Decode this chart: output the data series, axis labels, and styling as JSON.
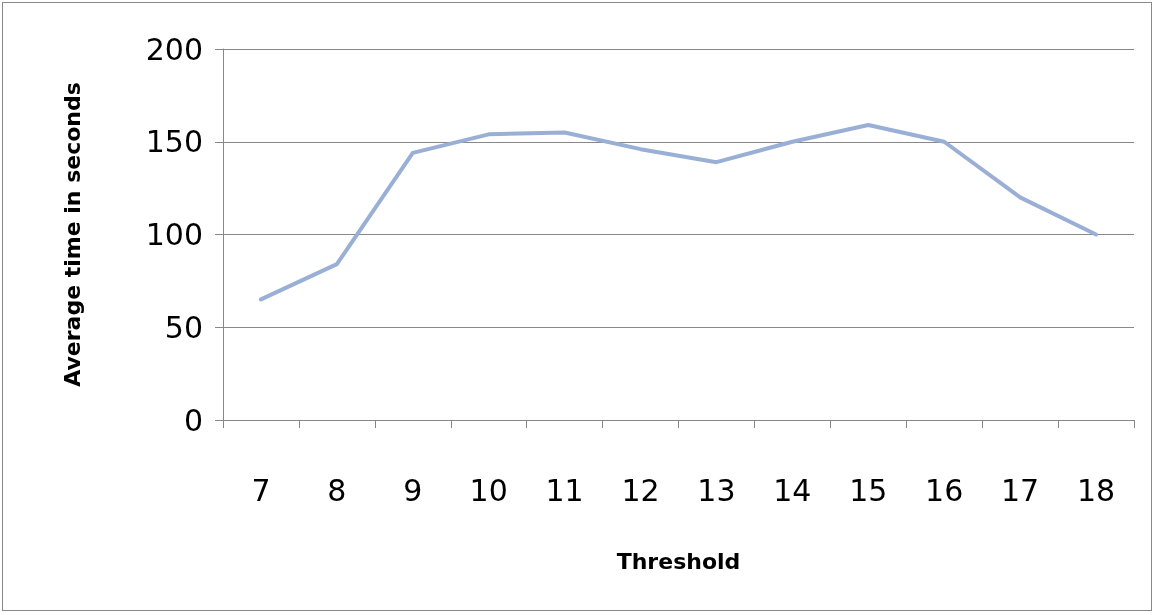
{
  "chart_data": {
    "type": "line",
    "xlabel": "Threshold",
    "ylabel": "Average time in seconds",
    "categories": [
      "7",
      "8",
      "9",
      "10",
      "11",
      "12",
      "13",
      "14",
      "15",
      "16",
      "17",
      "18"
    ],
    "series": [
      {
        "color": "#9aafd6",
        "values": [
          65,
          84,
          144,
          154,
          155,
          146,
          139,
          150,
          159,
          150,
          120,
          100
        ]
      }
    ],
    "ylim": [
      0,
      200
    ],
    "yticks": [
      0,
      50,
      100,
      150,
      200
    ],
    "grid": "y",
    "legend": false,
    "marker": "none",
    "line_style": "solid"
  }
}
